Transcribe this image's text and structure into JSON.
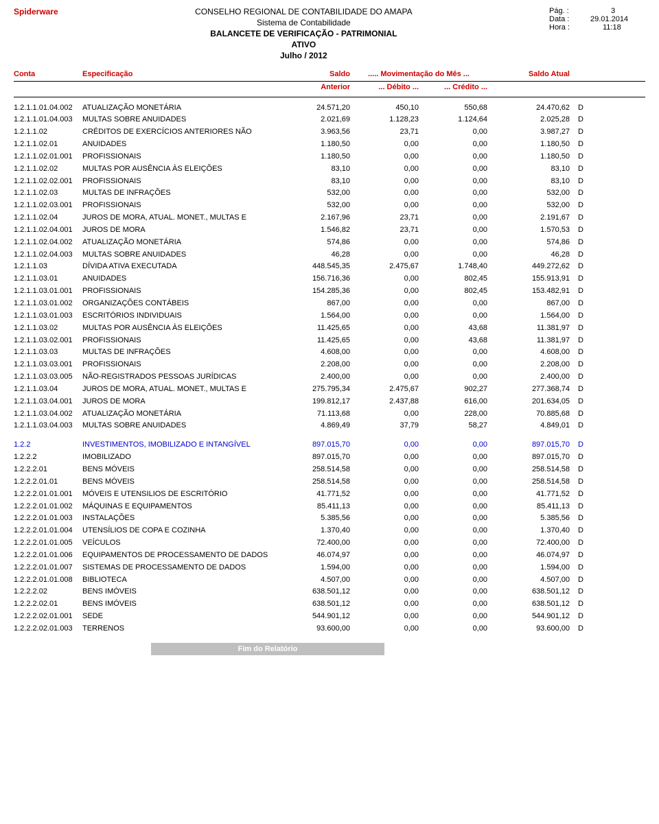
{
  "header": {
    "vendor": "Spiderware",
    "org": "CONSELHO REGIONAL DE CONTABILIDADE DO AMAPA",
    "system": "Sistema de Contabilidade",
    "report": "BALANCETE DE VERIFICAÇÃO - PATRIMONIAL",
    "section": "ATIVO",
    "period": "Julho / 2012",
    "page_label": "Pág. :",
    "page_value": "3",
    "date_label": "Data :",
    "date_value": "29.01.2014",
    "time_label": "Hora :",
    "time_value": "11:18"
  },
  "columns": {
    "conta": "Conta",
    "espec": "Especificação",
    "saldo": "Saldo",
    "mov": "..... Movimentação do Mês ...",
    "saldo_atual": "Saldo Atual",
    "anterior": "Anterior",
    "debito": "... Débito ...",
    "credito": "... Crédito ..."
  },
  "footer": "Fim do Relatório",
  "rows": [
    {
      "c": "1.2.1.1.01.04.002",
      "d": "ATUALIZAÇÃO MONETÁRIA",
      "sa": "24.571,20",
      "db": "450,10",
      "cr": "550,68",
      "sf": "24.470,62",
      "dc": "D"
    },
    {
      "c": "1.2.1.1.01.04.003",
      "d": "MULTAS SOBRE ANUIDADES",
      "sa": "2.021,69",
      "db": "1.128,23",
      "cr": "1.124,64",
      "sf": "2.025,28",
      "dc": "D"
    },
    {
      "c": "1.2.1.1.02",
      "d": "CRÉDITOS DE EXERCÍCIOS ANTERIORES NÃO",
      "sa": "3.963,56",
      "db": "23,71",
      "cr": "0,00",
      "sf": "3.987,27",
      "dc": "D"
    },
    {
      "c": "1.2.1.1.02.01",
      "d": "ANUIDADES",
      "sa": "1.180,50",
      "db": "0,00",
      "cr": "0,00",
      "sf": "1.180,50",
      "dc": "D"
    },
    {
      "c": "1.2.1.1.02.01.001",
      "d": "PROFISSIONAIS",
      "sa": "1.180,50",
      "db": "0,00",
      "cr": "0,00",
      "sf": "1.180,50",
      "dc": "D"
    },
    {
      "c": "1.2.1.1.02.02",
      "d": "MULTAS POR AUSÊNCIA ÀS ELEIÇÕES",
      "sa": "83,10",
      "db": "0,00",
      "cr": "0,00",
      "sf": "83,10",
      "dc": "D"
    },
    {
      "c": "1.2.1.1.02.02.001",
      "d": "PROFISSIONAIS",
      "sa": "83,10",
      "db": "0,00",
      "cr": "0,00",
      "sf": "83,10",
      "dc": "D"
    },
    {
      "c": "1.2.1.1.02.03",
      "d": "MULTAS DE INFRAÇÕES",
      "sa": "532,00",
      "db": "0,00",
      "cr": "0,00",
      "sf": "532,00",
      "dc": "D"
    },
    {
      "c": "1.2.1.1.02.03.001",
      "d": "PROFISSIONAIS",
      "sa": "532,00",
      "db": "0,00",
      "cr": "0,00",
      "sf": "532,00",
      "dc": "D"
    },
    {
      "c": "1.2.1.1.02.04",
      "d": "JUROS DE MORA, ATUAL. MONET., MULTAS E",
      "sa": "2.167,96",
      "db": "23,71",
      "cr": "0,00",
      "sf": "2.191,67",
      "dc": "D"
    },
    {
      "c": "1.2.1.1.02.04.001",
      "d": "JUROS DE MORA",
      "sa": "1.546,82",
      "db": "23,71",
      "cr": "0,00",
      "sf": "1.570,53",
      "dc": "D"
    },
    {
      "c": "1.2.1.1.02.04.002",
      "d": "ATUALIZAÇÃO MONETÁRIA",
      "sa": "574,86",
      "db": "0,00",
      "cr": "0,00",
      "sf": "574,86",
      "dc": "D"
    },
    {
      "c": "1.2.1.1.02.04.003",
      "d": "MULTAS SOBRE ANUIDADES",
      "sa": "46,28",
      "db": "0,00",
      "cr": "0,00",
      "sf": "46,28",
      "dc": "D"
    },
    {
      "c": "1.2.1.1.03",
      "d": "DÍVIDA ATIVA EXECUTADA",
      "sa": "448.545,35",
      "db": "2.475,67",
      "cr": "1.748,40",
      "sf": "449.272,62",
      "dc": "D"
    },
    {
      "c": "1.2.1.1.03.01",
      "d": "ANUIDADES",
      "sa": "156.716,36",
      "db": "0,00",
      "cr": "802,45",
      "sf": "155.913,91",
      "dc": "D"
    },
    {
      "c": "1.2.1.1.03.01.001",
      "d": "PROFISSIONAIS",
      "sa": "154.285,36",
      "db": "0,00",
      "cr": "802,45",
      "sf": "153.482,91",
      "dc": "D"
    },
    {
      "c": "1.2.1.1.03.01.002",
      "d": "ORGANIZAÇÕES CONTÁBEIS",
      "sa": "867,00",
      "db": "0,00",
      "cr": "0,00",
      "sf": "867,00",
      "dc": "D"
    },
    {
      "c": "1.2.1.1.03.01.003",
      "d": "ESCRITÓRIOS INDIVIDUAIS",
      "sa": "1.564,00",
      "db": "0,00",
      "cr": "0,00",
      "sf": "1.564,00",
      "dc": "D"
    },
    {
      "c": "1.2.1.1.03.02",
      "d": "MULTAS POR AUSÊNCIA ÀS ELEIÇÕES",
      "sa": "11.425,65",
      "db": "0,00",
      "cr": "43,68",
      "sf": "11.381,97",
      "dc": "D"
    },
    {
      "c": "1.2.1.1.03.02.001",
      "d": "PROFISSIONAIS",
      "sa": "11.425,65",
      "db": "0,00",
      "cr": "43,68",
      "sf": "11.381,97",
      "dc": "D"
    },
    {
      "c": "1.2.1.1.03.03",
      "d": "MULTAS DE INFRAÇÕES",
      "sa": "4.608,00",
      "db": "0,00",
      "cr": "0,00",
      "sf": "4.608,00",
      "dc": "D"
    },
    {
      "c": "1.2.1.1.03.03.001",
      "d": "PROFISSIONAIS",
      "sa": "2.208,00",
      "db": "0,00",
      "cr": "0,00",
      "sf": "2.208,00",
      "dc": "D"
    },
    {
      "c": "1.2.1.1.03.03.005",
      "d": "NÃO-REGISTRADOS PESSOAS JURÍDICAS",
      "sa": "2.400,00",
      "db": "0,00",
      "cr": "0,00",
      "sf": "2.400,00",
      "dc": "D"
    },
    {
      "c": "1.2.1.1.03.04",
      "d": "JUROS DE MORA, ATUAL. MONET., MULTAS E",
      "sa": "275.795,34",
      "db": "2.475,67",
      "cr": "902,27",
      "sf": "277.368,74",
      "dc": "D"
    },
    {
      "c": "1.2.1.1.03.04.001",
      "d": "JUROS DE MORA",
      "sa": "199.812,17",
      "db": "2.437,88",
      "cr": "616,00",
      "sf": "201.634,05",
      "dc": "D"
    },
    {
      "c": "1.2.1.1.03.04.002",
      "d": "ATUALIZAÇÃO MONETÁRIA",
      "sa": "71.113,68",
      "db": "0,00",
      "cr": "228,00",
      "sf": "70.885,68",
      "dc": "D"
    },
    {
      "c": "1.2.1.1.03.04.003",
      "d": "MULTAS SOBRE ANUIDADES",
      "sa": "4.869,49",
      "db": "37,79",
      "cr": "58,27",
      "sf": "4.849,01",
      "dc": "D"
    }
  ],
  "rows2": [
    {
      "c": "1.2.2",
      "d": "INVESTIMENTOS, IMOBILIZADO E INTANGÍVEL",
      "sa": "897.015,70",
      "db": "0,00",
      "cr": "0,00",
      "sf": "897.015,70",
      "dc": "D",
      "blue": true
    },
    {
      "c": "1.2.2.2",
      "d": "IMOBILIZADO",
      "sa": "897.015,70",
      "db": "0,00",
      "cr": "0,00",
      "sf": "897.015,70",
      "dc": "D"
    },
    {
      "c": "1.2.2.2.01",
      "d": "BENS MÓVEIS",
      "sa": "258.514,58",
      "db": "0,00",
      "cr": "0,00",
      "sf": "258.514,58",
      "dc": "D"
    },
    {
      "c": "1.2.2.2.01.01",
      "d": "BENS MÓVEIS",
      "sa": "258.514,58",
      "db": "0,00",
      "cr": "0,00",
      "sf": "258.514,58",
      "dc": "D"
    },
    {
      "c": "1.2.2.2.01.01.001",
      "d": "MÓVEIS E UTENSILIOS DE ESCRITÓRIO",
      "sa": "41.771,52",
      "db": "0,00",
      "cr": "0,00",
      "sf": "41.771,52",
      "dc": "D"
    },
    {
      "c": "1.2.2.2.01.01.002",
      "d": "MÁQUINAS E EQUIPAMENTOS",
      "sa": "85.411,13",
      "db": "0,00",
      "cr": "0,00",
      "sf": "85.411,13",
      "dc": "D"
    },
    {
      "c": "1.2.2.2.01.01.003",
      "d": "INSTALAÇÕES",
      "sa": "5.385,56",
      "db": "0,00",
      "cr": "0,00",
      "sf": "5.385,56",
      "dc": "D"
    },
    {
      "c": "1.2.2.2.01.01.004",
      "d": "UTENSÍLIOS DE COPA E COZINHA",
      "sa": "1.370,40",
      "db": "0,00",
      "cr": "0,00",
      "sf": "1.370,40",
      "dc": "D"
    },
    {
      "c": "1.2.2.2.01.01.005",
      "d": "VEÍCULOS",
      "sa": "72.400,00",
      "db": "0,00",
      "cr": "0,00",
      "sf": "72.400,00",
      "dc": "D"
    },
    {
      "c": "1.2.2.2.01.01.006",
      "d": "EQUIPAMENTOS DE PROCESSAMENTO DE DADOS",
      "sa": "46.074,97",
      "db": "0,00",
      "cr": "0,00",
      "sf": "46.074,97",
      "dc": "D"
    },
    {
      "c": "1.2.2.2.01.01.007",
      "d": "SISTEMAS DE PROCESSAMENTO DE DADOS",
      "sa": "1.594,00",
      "db": "0,00",
      "cr": "0,00",
      "sf": "1.594,00",
      "dc": "D"
    },
    {
      "c": "1.2.2.2.01.01.008",
      "d": "BIBLIOTECA",
      "sa": "4.507,00",
      "db": "0,00",
      "cr": "0,00",
      "sf": "4.507,00",
      "dc": "D"
    },
    {
      "c": "1.2.2.2.02",
      "d": "BENS IMÓVEIS",
      "sa": "638.501,12",
      "db": "0,00",
      "cr": "0,00",
      "sf": "638.501,12",
      "dc": "D"
    },
    {
      "c": "1.2.2.2.02.01",
      "d": "BENS IMÓVEIS",
      "sa": "638.501,12",
      "db": "0,00",
      "cr": "0,00",
      "sf": "638.501,12",
      "dc": "D"
    },
    {
      "c": "1.2.2.2.02.01.001",
      "d": "SEDE",
      "sa": "544.901,12",
      "db": "0,00",
      "cr": "0,00",
      "sf": "544.901,12",
      "dc": "D"
    },
    {
      "c": "1.2.2.2.02.01.003",
      "d": "TERRENOS",
      "sa": "93.600,00",
      "db": "0,00",
      "cr": "0,00",
      "sf": "93.600,00",
      "dc": "D"
    }
  ]
}
